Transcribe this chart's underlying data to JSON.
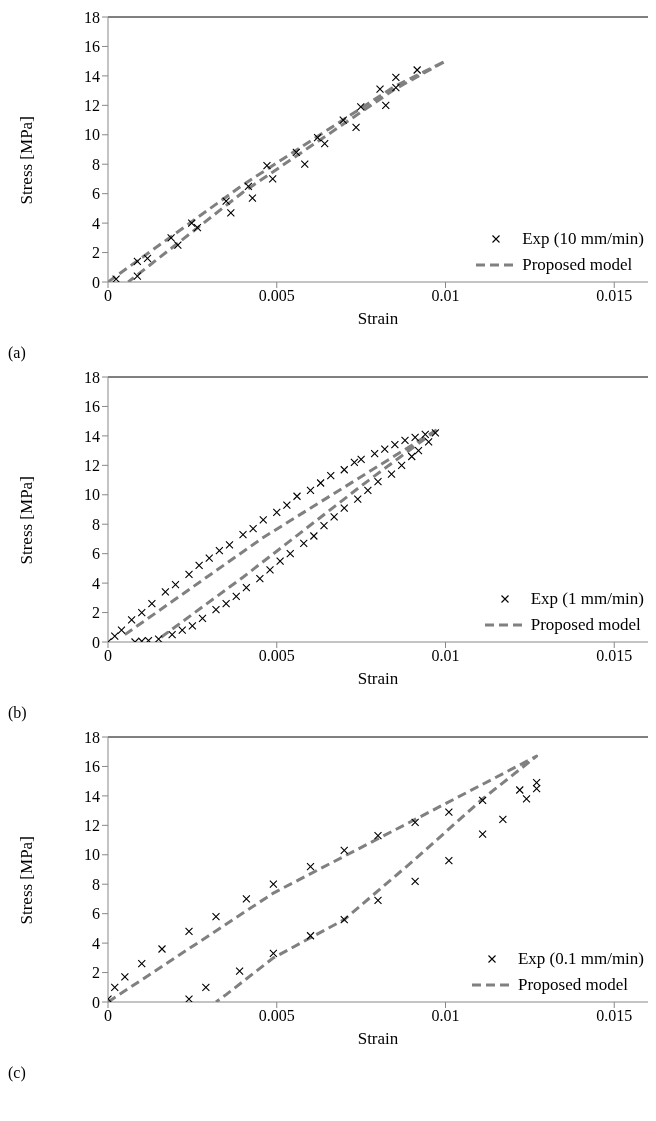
{
  "chart_data": [
    {
      "type": "scatter",
      "xlabel": "Strain",
      "ylabel": "Stress [MPa]",
      "xlim": [
        0,
        0.016
      ],
      "ylim": [
        0,
        18
      ],
      "xticks": [
        0,
        0.005,
        0.01,
        0.015
      ],
      "yticks": [
        0,
        2,
        4,
        6,
        8,
        10,
        12,
        14,
        16,
        18
      ],
      "grid": false,
      "legend": "bottom right",
      "annotations": [
        "(a)"
      ],
      "series": [
        {
          "name": "Exp (10 mm/min)",
          "marker": "cross",
          "color": "#000000",
          "x": [
            0.00024,
            0.00087,
            0.00087,
            0.00117,
            0.00187,
            0.00207,
            0.00248,
            0.00265,
            0.0035,
            0.00364,
            0.00416,
            0.00428,
            0.00471,
            0.00488,
            0.00558,
            0.00583,
            0.00621,
            0.00642,
            0.00697,
            0.00735,
            0.00749,
            0.00806,
            0.00823,
            0.00853,
            0.00853,
            0.00916
          ],
          "values": [
            0.2,
            0.4,
            1.4,
            1.6,
            3.0,
            2.5,
            4.0,
            3.7,
            5.5,
            4.7,
            6.5,
            5.7,
            7.9,
            7.0,
            8.8,
            8.0,
            9.8,
            9.4,
            11.0,
            10.5,
            11.9,
            13.1,
            12.0,
            13.9,
            13.2,
            14.4
          ]
        },
        {
          "name": "Proposed model",
          "type": "line",
          "marker": "none",
          "line_style": "dashed",
          "color": "#808080",
          "x": [
            0,
            0.004,
            0.0085,
            0.01,
            0.0085,
            0.004,
            0.0006
          ],
          "values": [
            0,
            6.6,
            13.3,
            15.0,
            13.1,
            6.1,
            0
          ]
        }
      ]
    },
    {
      "type": "scatter",
      "xlabel": "Strain",
      "ylabel": "Stress [MPa]",
      "xlim": [
        0,
        0.016
      ],
      "ylim": [
        0,
        18
      ],
      "xticks": [
        0,
        0.005,
        0.01,
        0.015
      ],
      "yticks": [
        0,
        2,
        4,
        6,
        8,
        10,
        12,
        14,
        16,
        18
      ],
      "grid": false,
      "legend": "bottom right",
      "annotations": [
        "(b)"
      ],
      "series": [
        {
          "name": "Exp (1 mm/min)",
          "marker": "cross",
          "color": "#000000",
          "x": [
            0,
            0.0002,
            0.0004,
            0.0007,
            0.001,
            0.0013,
            0.0017,
            0.002,
            0.0024,
            0.0027,
            0.003,
            0.0033,
            0.0036,
            0.004,
            0.0043,
            0.0046,
            0.005,
            0.0053,
            0.0056,
            0.006,
            0.0063,
            0.0066,
            0.007,
            0.0073,
            0.0075,
            0.0079,
            0.0082,
            0.0085,
            0.0088,
            0.0091,
            0.0094,
            0.0097,
            0.0095,
            0.0092,
            0.009,
            0.0087,
            0.0084,
            0.008,
            0.0077,
            0.0074,
            0.007,
            0.0067,
            0.0064,
            0.0061,
            0.0058,
            0.0054,
            0.0051,
            0.0048,
            0.0045,
            0.0041,
            0.0038,
            0.0035,
            0.0032,
            0.0028,
            0.0025,
            0.0022,
            0.0019,
            0.0015,
            0.0012,
            0.001,
            0.0008
          ],
          "values": [
            0,
            0.4,
            0.8,
            1.5,
            2.0,
            2.6,
            3.4,
            3.9,
            4.6,
            5.2,
            5.7,
            6.2,
            6.6,
            7.3,
            7.7,
            8.3,
            8.8,
            9.3,
            9.9,
            10.3,
            10.8,
            11.3,
            11.7,
            12.2,
            12.4,
            12.8,
            13.1,
            13.4,
            13.7,
            13.9,
            14.1,
            14.2,
            13.6,
            13.0,
            12.6,
            12.0,
            11.4,
            10.9,
            10.3,
            9.7,
            9.1,
            8.5,
            7.9,
            7.2,
            6.7,
            6.0,
            5.5,
            4.9,
            4.3,
            3.7,
            3.1,
            2.6,
            2.2,
            1.6,
            1.1,
            0.8,
            0.5,
            0.2,
            0.1,
            0.05,
            0
          ]
        },
        {
          "name": "Proposed model",
          "type": "line",
          "marker": "none",
          "line_style": "dashed",
          "color": "#808080",
          "x": [
            0.0005,
            0.0046,
            0.0098,
            0.0075,
            0.004,
            0.0015
          ],
          "values": [
            0.5,
            7.1,
            14.5,
            10.6,
            4.4,
            0.2
          ]
        }
      ]
    },
    {
      "type": "scatter",
      "xlabel": "Strain",
      "ylabel": "Stress [MPa]",
      "xlim": [
        0,
        0.016
      ],
      "ylim": [
        0,
        18
      ],
      "xticks": [
        0,
        0.005,
        0.01,
        0.015
      ],
      "yticks": [
        0,
        2,
        4,
        6,
        8,
        10,
        12,
        14,
        16,
        18
      ],
      "grid": false,
      "legend": "bottom right",
      "annotations": [
        "(c)"
      ],
      "series": [
        {
          "name": "Exp (0.1 mm/min)",
          "marker": "cross",
          "color": "#000000",
          "x": [
            0,
            0.0002,
            0.0005,
            0.001,
            0.0016,
            0.0024,
            0.0032,
            0.0041,
            0.0049,
            0.006,
            0.007,
            0.008,
            0.0091,
            0.0101,
            0.0111,
            0.0122,
            0.0127,
            0.0127,
            0.0124,
            0.0117,
            0.0111,
            0.0101,
            0.0091,
            0.008,
            0.007,
            0.006,
            0.0049,
            0.0039,
            0.0029,
            0.0024
          ],
          "values": [
            0.2,
            1.0,
            1.7,
            2.6,
            3.6,
            4.8,
            5.8,
            7.0,
            8.0,
            9.2,
            10.3,
            11.3,
            12.2,
            12.9,
            13.7,
            14.4,
            14.9,
            14.5,
            13.8,
            12.4,
            11.4,
            9.6,
            8.2,
            6.9,
            5.6,
            4.5,
            3.3,
            2.1,
            1.0,
            0.2
          ]
        },
        {
          "name": "Proposed model",
          "type": "line",
          "marker": "none",
          "line_style": "dashed",
          "color": "#808080",
          "x": [
            0,
            0.0049,
            0.0091,
            0.0127,
            0.0111,
            0.0091,
            0.007,
            0.0049,
            0.0035,
            0.0032
          ],
          "values": [
            0,
            7.4,
            12.4,
            16.7,
            13.8,
            9.7,
            5.6,
            3.0,
            0.5,
            0
          ]
        }
      ]
    }
  ]
}
